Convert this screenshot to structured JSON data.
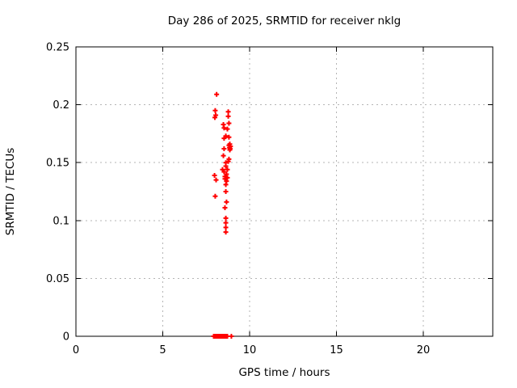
{
  "window": {
    "background": "#ffffff"
  },
  "chart_data": {
    "type": "scatter",
    "title": "Day 286 of 2025, SRMTID for receiver nklg",
    "xlabel": "GPS time / hours",
    "ylabel": "SRMTID / TECUs",
    "xlim": [
      0,
      24
    ],
    "ylim": [
      0,
      0.25
    ],
    "xticks": [
      0,
      5,
      10,
      15,
      20
    ],
    "xtick_labels": [
      "0",
      "5",
      "10",
      "15",
      "20"
    ],
    "yticks": [
      0,
      0.05,
      0.1,
      0.15,
      0.2,
      0.25
    ],
    "ytick_labels": [
      "0",
      "0.05",
      "0.1",
      "0.15",
      "0.2",
      "0.25"
    ],
    "grid": true,
    "grid_style": "dashed",
    "legend": "none",
    "marker": "plus",
    "colors": {
      "marker": "#ff0000",
      "grid": "#b4b4b4",
      "axis": "#000000",
      "text": "#000000",
      "background": "#ffffff"
    },
    "series": [
      {
        "name": "SRMTID",
        "color": "#ff0000",
        "points": [
          [
            8.1,
            0.209
          ],
          [
            8.02,
            0.195
          ],
          [
            8.05,
            0.191
          ],
          [
            8.0,
            0.189
          ],
          [
            8.77,
            0.194
          ],
          [
            8.77,
            0.19
          ],
          [
            8.81,
            0.184
          ],
          [
            8.49,
            0.183
          ],
          [
            8.53,
            0.18
          ],
          [
            8.72,
            0.179
          ],
          [
            8.63,
            0.173
          ],
          [
            8.81,
            0.172
          ],
          [
            8.53,
            0.171
          ],
          [
            8.86,
            0.166
          ],
          [
            8.81,
            0.165
          ],
          [
            8.9,
            0.164
          ],
          [
            8.84,
            0.163
          ],
          [
            8.88,
            0.162
          ],
          [
            8.53,
            0.162
          ],
          [
            8.86,
            0.161
          ],
          [
            8.49,
            0.156
          ],
          [
            8.81,
            0.153
          ],
          [
            8.77,
            0.151
          ],
          [
            8.63,
            0.15
          ],
          [
            8.63,
            0.147
          ],
          [
            8.44,
            0.144
          ],
          [
            8.72,
            0.144
          ],
          [
            8.53,
            0.142
          ],
          [
            8.67,
            0.14
          ],
          [
            7.98,
            0.139
          ],
          [
            8.58,
            0.138
          ],
          [
            8.72,
            0.137
          ],
          [
            8.58,
            0.136
          ],
          [
            8.07,
            0.135
          ],
          [
            8.67,
            0.134
          ],
          [
            8.63,
            0.131
          ],
          [
            8.63,
            0.125
          ],
          [
            8.02,
            0.121
          ],
          [
            8.67,
            0.116
          ],
          [
            8.58,
            0.111
          ],
          [
            8.63,
            0.102
          ],
          [
            8.63,
            0.098
          ],
          [
            8.63,
            0.094
          ],
          [
            8.63,
            0.09
          ],
          [
            7.93,
            0
          ],
          [
            7.97,
            0
          ],
          [
            8.01,
            0
          ],
          [
            8.05,
            0
          ],
          [
            8.09,
            0
          ],
          [
            8.13,
            0
          ],
          [
            8.17,
            0
          ],
          [
            8.21,
            0
          ],
          [
            8.25,
            0
          ],
          [
            8.29,
            0
          ],
          [
            8.33,
            0
          ],
          [
            8.37,
            0
          ],
          [
            8.41,
            0
          ],
          [
            8.45,
            0
          ],
          [
            8.49,
            0
          ],
          [
            8.53,
            0
          ],
          [
            8.57,
            0
          ],
          [
            8.61,
            0
          ],
          [
            8.65,
            0
          ],
          [
            8.69,
            0
          ],
          [
            8.72,
            0
          ],
          [
            8.95,
            0
          ]
        ]
      }
    ]
  }
}
